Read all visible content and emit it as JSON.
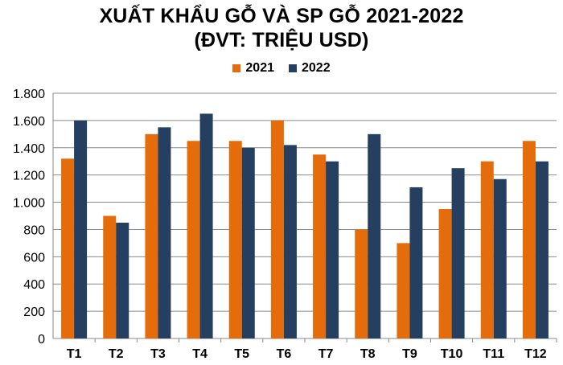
{
  "chart_data": {
    "type": "bar",
    "title_lines": [
      "XUẤT KHẨU GỖ VÀ SP GỖ 2021-2022",
      "(ĐVT: TRIỆU USD)"
    ],
    "categories": [
      "T1",
      "T2",
      "T3",
      "T4",
      "T5",
      "T6",
      "T7",
      "T8",
      "T9",
      "T10",
      "T11",
      "T12"
    ],
    "series": [
      {
        "name": "2021",
        "color": "#E46C0A",
        "values": [
          1320,
          900,
          1500,
          1450,
          1450,
          1600,
          1350,
          800,
          700,
          950,
          1300,
          1450
        ]
      },
      {
        "name": "2022",
        "color": "#243F60",
        "values": [
          1600,
          850,
          1550,
          1650,
          1400,
          1420,
          1300,
          1500,
          1110,
          1250,
          1170,
          1300
        ]
      }
    ],
    "ylim": [
      0,
      1800
    ],
    "yticks": [
      0,
      200,
      400,
      600,
      800,
      1000,
      1200,
      1400,
      1600,
      1800
    ],
    "ytick_labels": [
      "0",
      "200",
      "400",
      "600",
      "800",
      "1.000",
      "1.200",
      "1.400",
      "1.600",
      "1.800"
    ],
    "legend_position": "top-center",
    "grid": true
  }
}
